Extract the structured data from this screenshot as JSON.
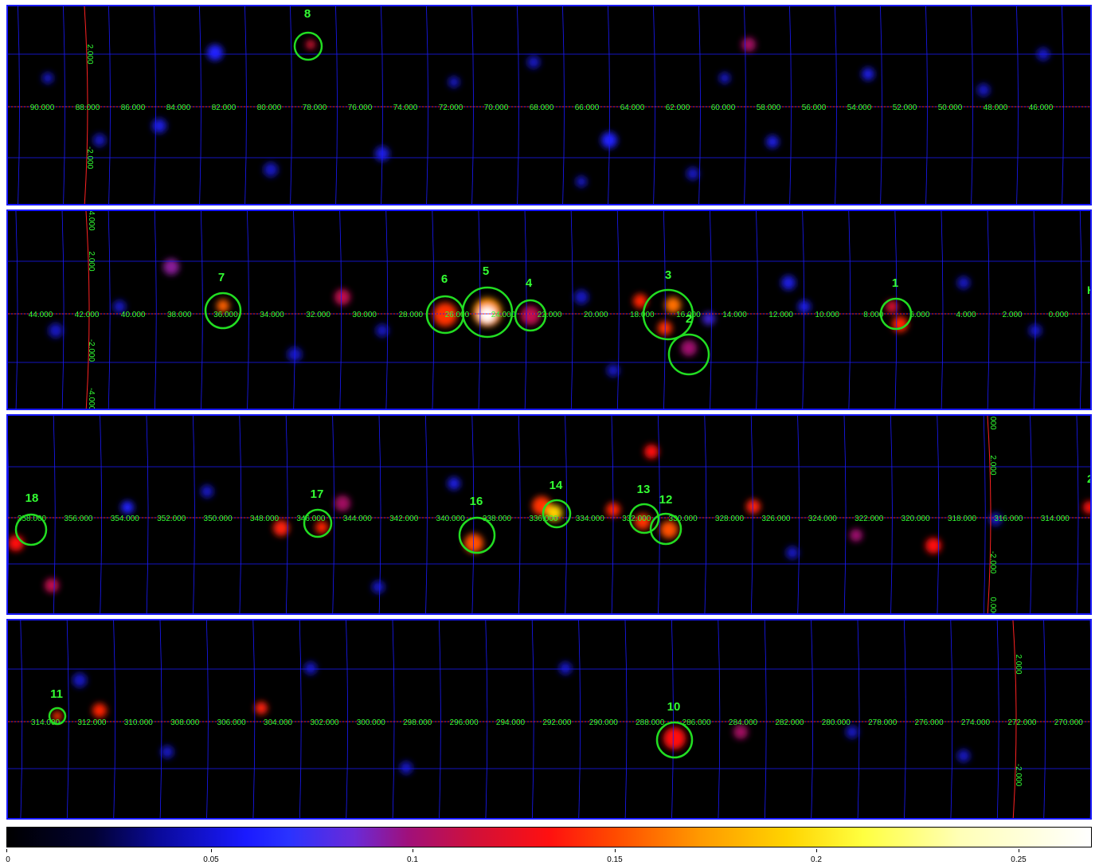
{
  "panels": [
    {
      "lon_labels": [
        "90.000",
        "88.000",
        "86.000",
        "84.000",
        "82.000",
        "80.000",
        "78.000",
        "76.000",
        "74.000",
        "72.000",
        "70.000",
        "68.000",
        "66.000",
        "64.000",
        "62.000",
        "60.000",
        "58.000",
        "56.000",
        "54.000",
        "52.000",
        "50.000",
        "48.000",
        "46.000"
      ],
      "lat_labels": [
        "2.000",
        "-2.000"
      ],
      "sources": [
        {
          "id": "8"
        }
      ]
    },
    {
      "lon_labels": [
        "44.000",
        "42.000",
        "40.000",
        "38.000",
        "36.000",
        "34.000",
        "32.000",
        "30.000",
        "28.000",
        "26.000",
        "24.000",
        "22.000",
        "20.000",
        "18.000",
        "16.000",
        "14.000",
        "12.000",
        "10.000",
        "8.000",
        "6.000",
        "4.000",
        "2.000",
        "0.000"
      ],
      "lat_labels": [
        "4.000",
        "2.000",
        "-2.000",
        "-4.000"
      ],
      "sources": [
        {
          "id": "7"
        },
        {
          "id": "6"
        },
        {
          "id": "5"
        },
        {
          "id": "4"
        },
        {
          "id": "3"
        },
        {
          "id": "2"
        },
        {
          "id": "1"
        }
      ],
      "edge_fragment": "H"
    },
    {
      "lon_labels": [
        "358.000",
        "356.000",
        "354.000",
        "352.000",
        "350.000",
        "348.000",
        "346.000",
        "344.000",
        "342.000",
        "340.000",
        "338.000",
        "336.000",
        "334.000",
        "332.000",
        "330.000",
        "328.000",
        "326.000",
        "324.000",
        "322.000",
        "320.000",
        "318.000",
        "316.000",
        "314.000"
      ],
      "lat_labels": [
        "0.000",
        "2.000",
        "-2.000",
        "0.000"
      ],
      "sources": [
        {
          "id": "18"
        },
        {
          "id": "17"
        },
        {
          "id": "16"
        },
        {
          "id": "14"
        },
        {
          "id": "13"
        },
        {
          "id": "12"
        }
      ],
      "edge_fragment": "2"
    },
    {
      "lon_labels": [
        "314.000",
        "312.000",
        "310.000",
        "308.000",
        "306.000",
        "304.000",
        "302.000",
        "300.000",
        "298.000",
        "296.000",
        "294.000",
        "292.000",
        "290.000",
        "288.000",
        "286.000",
        "284.000",
        "282.000",
        "280.000",
        "278.000",
        "276.000",
        "274.000",
        "272.000",
        "270.000"
      ],
      "lat_labels": [
        "2.000",
        "-2.000"
      ],
      "sources": [
        {
          "id": "11"
        },
        {
          "id": "10"
        }
      ]
    }
  ],
  "colorbar": {
    "labels": [
      "0",
      "0.05",
      "0.1",
      "0.15",
      "0.2",
      "0.25"
    ]
  },
  "colors": {
    "grid": "#1a1aff",
    "source_circle": "#22dd22",
    "label": "#33ff33",
    "axis_line": "#ff2222"
  }
}
